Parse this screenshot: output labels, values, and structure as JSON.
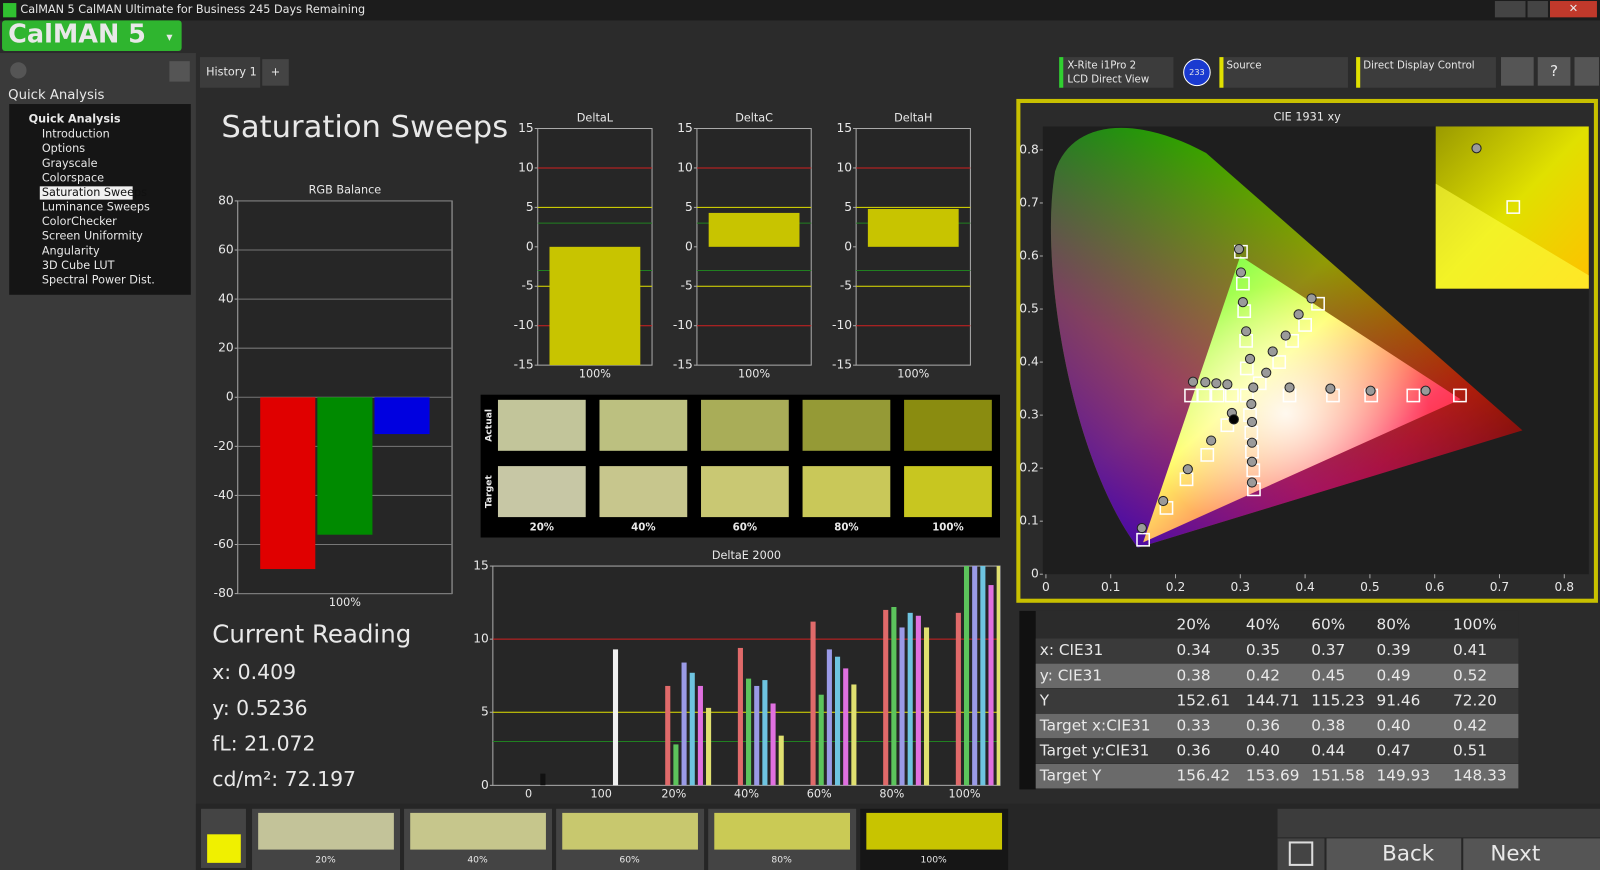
{
  "window": {
    "title": "CalMAN 5 CalMAN Ultimate for Business 245 Days Remaining",
    "logo": "CalMAN 5"
  },
  "sidebar": {
    "heading": "Quick Analysis",
    "tree_root": "Quick Analysis",
    "items": [
      "Introduction",
      "Options",
      "Grayscale",
      "Colorspace",
      "Saturation Sweeps",
      "Luminance Sweeps",
      "ColorChecker",
      "Screen Uniformity",
      "Angularity",
      "3D Cube LUT",
      "Spectral Power Dist."
    ],
    "selected": 4
  },
  "tabs": [
    "History 1"
  ],
  "toolbar": {
    "meter": "X-Rite i1Pro 2",
    "meter_mode": "LCD Direct View",
    "meter_badge": "233",
    "source": "Source",
    "display": "Direct Display Control"
  },
  "page_title": "Saturation Sweeps",
  "chart_data": [
    {
      "type": "bar",
      "title": "RGB Balance",
      "categories": [
        "100%"
      ],
      "series": [
        {
          "color": "#e00000",
          "values": [
            -70
          ]
        },
        {
          "color": "#008a00",
          "values": [
            -56
          ]
        },
        {
          "color": "#0000e0",
          "values": [
            -15
          ]
        }
      ],
      "ylim": [
        -80,
        80
      ],
      "yticks": [
        -80,
        -60,
        -40,
        -20,
        0,
        20,
        40,
        60,
        80
      ],
      "grid": true
    },
    {
      "type": "bar",
      "title": "DeltaL",
      "categories": [
        "100%"
      ],
      "values": [
        -15
      ],
      "color": "#c8c400",
      "ylim": [
        -15,
        15
      ],
      "yticks": [
        -15,
        -10,
        -5,
        0,
        5,
        10,
        15
      ],
      "grid": false,
      "ref_lines": [
        {
          "value": 10,
          "color": "#d02020"
        },
        {
          "value": -10,
          "color": "#d02020"
        },
        {
          "value": 5,
          "color": "#e0e000"
        },
        {
          "value": -5,
          "color": "#e0e000"
        },
        {
          "value": 3,
          "color": "#208020"
        },
        {
          "value": -3,
          "color": "#208020"
        }
      ]
    },
    {
      "type": "bar",
      "title": "DeltaC",
      "categories": [
        "100%"
      ],
      "values": [
        4.3
      ],
      "color": "#c8c400",
      "ylim": [
        -15,
        15
      ],
      "yticks": [
        -15,
        -10,
        -5,
        0,
        5,
        10,
        15
      ],
      "grid": false,
      "ref_lines": [
        {
          "value": 10,
          "color": "#d02020"
        },
        {
          "value": -10,
          "color": "#d02020"
        },
        {
          "value": 5,
          "color": "#e0e000"
        },
        {
          "value": -5,
          "color": "#e0e000"
        },
        {
          "value": 3,
          "color": "#208020"
        },
        {
          "value": -3,
          "color": "#208020"
        }
      ]
    },
    {
      "type": "bar",
      "title": "DeltaH",
      "categories": [
        "100%"
      ],
      "values": [
        4.8
      ],
      "color": "#c8c400",
      "ylim": [
        -15,
        15
      ],
      "yticks": [
        -15,
        -10,
        -5,
        0,
        5,
        10,
        15
      ],
      "grid": false,
      "ref_lines": [
        {
          "value": 10,
          "color": "#d02020"
        },
        {
          "value": -10,
          "color": "#d02020"
        },
        {
          "value": 5,
          "color": "#e0e000"
        },
        {
          "value": -5,
          "color": "#e0e000"
        },
        {
          "value": 3,
          "color": "#208020"
        },
        {
          "value": -3,
          "color": "#208020"
        }
      ]
    },
    {
      "type": "bar",
      "title": "DeltaE 2000",
      "categories": [
        "0",
        "100",
        "20%",
        "40%",
        "60%",
        "80%",
        "100%"
      ],
      "series": [
        {
          "color": "#111111",
          "values": [
            0.8,
            null,
            null,
            null,
            null,
            null,
            null
          ]
        },
        {
          "color": "#f0f0f0",
          "values": [
            null,
            9.3,
            null,
            null,
            null,
            null,
            null
          ]
        },
        {
          "color": "#e06a6a",
          "values": [
            null,
            null,
            6.8,
            9.4,
            11.2,
            12.0,
            11.8
          ]
        },
        {
          "color": "#5cc45c",
          "values": [
            null,
            null,
            2.8,
            7.3,
            6.2,
            12.2,
            16
          ]
        },
        {
          "color": "#9a9ae6",
          "values": [
            null,
            null,
            8.4,
            6.8,
            9.3,
            10.8,
            16
          ]
        },
        {
          "color": "#6ec4e0",
          "values": [
            null,
            null,
            7.7,
            7.2,
            8.8,
            11.8,
            16
          ]
        },
        {
          "color": "#e070e0",
          "values": [
            null,
            null,
            6.8,
            5.6,
            8.0,
            11.6,
            13.7
          ]
        },
        {
          "color": "#e0e070",
          "values": [
            null,
            null,
            5.3,
            3.4,
            6.9,
            10.8,
            16
          ]
        }
      ],
      "ylim": [
        0,
        15
      ],
      "yticks": [
        0,
        5,
        10,
        15
      ],
      "grid": false,
      "ref_lines": [
        {
          "value": 10,
          "color": "#d02020"
        },
        {
          "value": 5,
          "color": "#e0e000"
        },
        {
          "value": 3,
          "color": "#208020"
        }
      ]
    },
    {
      "type": "scatter",
      "title": "CIE 1931 xy",
      "xlim": [
        0,
        0.84
      ],
      "ylim": [
        0,
        0.84
      ],
      "xticks": [
        0,
        0.1,
        0.2,
        0.3,
        0.4,
        0.5,
        0.6,
        0.7,
        0.8
      ],
      "yticks": [
        0,
        0.1,
        0.2,
        0.3,
        0.4,
        0.5,
        0.6,
        0.7,
        0.8
      ],
      "gamut": {
        "x": [
          0.64,
          0.3,
          0.15
        ],
        "y": [
          0.33,
          0.6,
          0.06
        ]
      },
      "series": [
        {
          "marker": "square",
          "color": "#ffffff",
          "x": [
            0.15,
            0.186,
            0.217,
            0.249,
            0.28,
            0.31,
            0.301,
            0.304,
            0.306,
            0.309,
            0.31,
            0.639,
            0.567,
            0.502,
            0.443,
            0.376,
            0.224,
            0.244,
            0.265,
            0.287,
            0.321,
            0.32,
            0.318,
            0.317,
            0.315,
            0.42,
            0.4,
            0.38,
            0.36,
            0.33
          ],
          "y": [
            0.065,
            0.125,
            0.179,
            0.225,
            0.281,
            0.337,
            0.608,
            0.548,
            0.496,
            0.44,
            0.388,
            0.337,
            0.337,
            0.337,
            0.337,
            0.337,
            0.337,
            0.337,
            0.337,
            0.337,
            0.16,
            0.196,
            0.231,
            0.267,
            0.3,
            0.51,
            0.47,
            0.44,
            0.4,
            0.36
          ]
        },
        {
          "marker": "circle",
          "color": "#9a9a9a",
          "x": [
            0.148,
            0.181,
            0.219,
            0.255,
            0.287,
            0.298,
            0.301,
            0.304,
            0.309,
            0.315,
            0.586,
            0.501,
            0.439,
            0.376,
            0.32,
            0.227,
            0.246,
            0.263,
            0.28,
            0.318,
            0.318,
            0.318,
            0.318,
            0.317,
            0.41,
            0.39,
            0.37,
            0.35,
            0.34
          ],
          "y": [
            0.087,
            0.138,
            0.198,
            0.252,
            0.304,
            0.613,
            0.569,
            0.513,
            0.458,
            0.406,
            0.346,
            0.346,
            0.35,
            0.352,
            0.352,
            0.363,
            0.362,
            0.36,
            0.358,
            0.173,
            0.212,
            0.248,
            0.287,
            0.321,
            0.52,
            0.49,
            0.45,
            0.42,
            0.38
          ]
        },
        {
          "marker": "circle",
          "color": "#000000",
          "x": [
            0.29
          ],
          "y": [
            0.292
          ]
        }
      ]
    }
  ],
  "patches": {
    "rows": [
      "Actual",
      "Target"
    ],
    "columns": [
      "20%",
      "40%",
      "60%",
      "80%",
      "100%"
    ],
    "actual_colors": [
      "#c2c59a",
      "#bcc080",
      "#a9ad58",
      "#959a36",
      "#8a8c10"
    ],
    "target_colors": [
      "#c7c7a5",
      "#c7c68d",
      "#c9c873",
      "#c9c859",
      "#c8c620"
    ]
  },
  "current_reading": {
    "title": "Current Reading",
    "lines": [
      "x: 0.409",
      "y: 0.5236",
      "fL: 21.072",
      "cd/m²: 72.197"
    ]
  },
  "table": {
    "columns": [
      "20%",
      "40%",
      "60%",
      "80%",
      "100%"
    ],
    "rows": [
      {
        "label": "x: CIE31",
        "values": [
          "0.34",
          "0.35",
          "0.37",
          "0.39",
          "0.41"
        ]
      },
      {
        "label": "y: CIE31",
        "values": [
          "0.38",
          "0.42",
          "0.45",
          "0.49",
          "0.52"
        ]
      },
      {
        "label": "Y",
        "values": [
          "152.61",
          "144.71",
          "115.23",
          "91.46",
          "72.20"
        ]
      },
      {
        "label": "Target x:CIE31",
        "values": [
          "0.33",
          "0.36",
          "0.38",
          "0.40",
          "0.42"
        ]
      },
      {
        "label": "Target y:CIE31",
        "values": [
          "0.36",
          "0.40",
          "0.44",
          "0.47",
          "0.51"
        ]
      },
      {
        "label": "Target Y",
        "values": [
          "156.42",
          "153.69",
          "151.58",
          "149.93",
          "148.33"
        ]
      }
    ]
  },
  "footer": {
    "indicator_color": "#f0f000",
    "swatches": [
      {
        "label": "20%",
        "color": "#c3c399"
      },
      {
        "label": "40%",
        "color": "#c6c68c"
      },
      {
        "label": "60%",
        "color": "#c8c86e"
      },
      {
        "label": "80%",
        "color": "#caca55"
      },
      {
        "label": "100%",
        "color": "#c8c400"
      }
    ],
    "selected": 4,
    "back": "Back",
    "next": "Next"
  }
}
